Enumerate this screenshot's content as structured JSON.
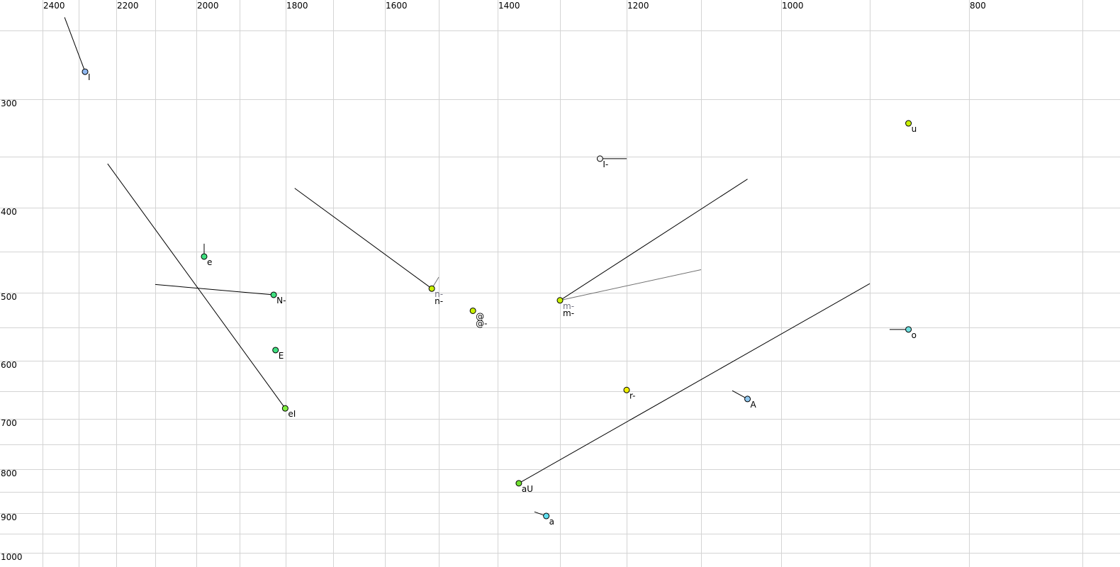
{
  "chart_data": {
    "type": "scatter",
    "title": "",
    "xlabel": "",
    "ylabel": "",
    "x_axis_reversed": true,
    "y_axis_reversed": true,
    "x_ticks": [
      2400,
      2200,
      2000,
      1800,
      1600,
      1400,
      1200,
      1000,
      800
    ],
    "y_ticks": [
      300,
      400,
      500,
      600,
      700,
      800,
      900,
      1000
    ],
    "x_gridlines": [
      2400,
      2300,
      2200,
      2100,
      2000,
      1900,
      1800,
      1700,
      1600,
      1500,
      1400,
      1300,
      1200,
      1100,
      1000,
      900,
      800,
      700
    ],
    "y_gridlines": [
      250,
      300,
      350,
      400,
      450,
      500,
      550,
      600,
      650,
      700,
      750,
      800,
      850,
      900,
      950,
      1000
    ],
    "grid": true,
    "legend": "none",
    "points": [
      {
        "label": "I",
        "f2": 2283,
        "f1": 280,
        "color": "#90b8f0",
        "trail": [
          [
            2339,
            240
          ]
        ]
      },
      {
        "label": "u",
        "f2": 861,
        "f1": 321,
        "color": "#c8f000",
        "trail": []
      },
      {
        "label": "I-",
        "f2": 1240,
        "f1": 352,
        "color": "#f0f0f0",
        "trail": [
          [
            1200,
            352
          ]
        ]
      },
      {
        "label": "e",
        "f2": 1982,
        "f1": 456,
        "color": "#40e080",
        "trail": [
          [
            1982,
            441
          ]
        ]
      },
      {
        "label": "N-",
        "f2": 1826,
        "f1": 503,
        "color": "#40e080",
        "trail": [
          [
            2100,
            490
          ]
        ]
      },
      {
        "label": "n-",
        "label2": "n-",
        "f2": 1513,
        "f1": 495,
        "color": "#c8f000",
        "trail": [
          [
            1781,
            381
          ]
        ],
        "trail2": [
          [
            1500,
            481
          ]
        ]
      },
      {
        "label": "@-",
        "label2": "@",
        "f2": 1442,
        "f1": 526,
        "color": "#c8f000",
        "trail": []
      },
      {
        "label": "m-",
        "label2": "m-",
        "f2": 1300,
        "f1": 511,
        "color": "#c8f000",
        "trail": [
          [
            1042,
            372
          ]
        ],
        "trail2": [
          [
            1100,
            472
          ]
        ]
      },
      {
        "label": "E",
        "f2": 1822,
        "f1": 584,
        "color": "#40e080",
        "trail": []
      },
      {
        "label": "o",
        "f2": 861,
        "f1": 553,
        "color": "#70e0e0",
        "trail": [
          [
            880,
            553
          ]
        ]
      },
      {
        "label": "eI",
        "f2": 1801,
        "f1": 681,
        "color": "#80f040",
        "trail": [
          [
            2223,
            357
          ]
        ]
      },
      {
        "label": "r-",
        "f2": 1200,
        "f1": 648,
        "color": "#f0f000",
        "trail": [
          [
            1200,
            644
          ]
        ]
      },
      {
        "label": "A",
        "f2": 1042,
        "f1": 664,
        "color": "#90c8f0",
        "trail": [
          [
            1061,
            649
          ]
        ]
      },
      {
        "label": "aU",
        "f2": 1366,
        "f1": 831,
        "color": "#70e030",
        "trail": [
          [
            900,
            489
          ]
        ]
      },
      {
        "label": "a",
        "f2": 1322,
        "f1": 907,
        "color": "#60e0f0",
        "trail": [
          [
            1341,
            897
          ]
        ]
      }
    ]
  }
}
